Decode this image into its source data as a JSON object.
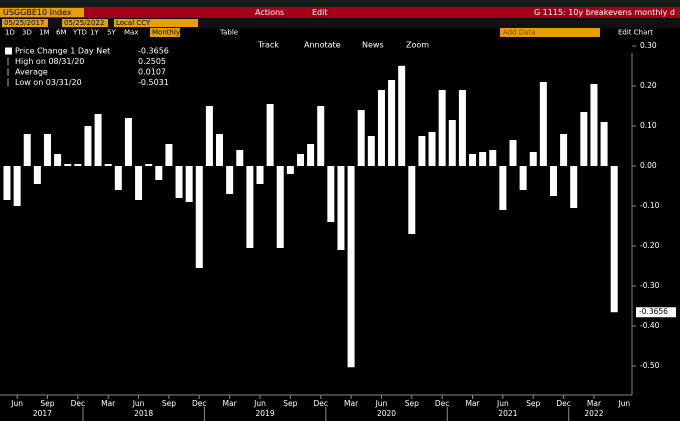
{
  "ui": {
    "security": "USGGBE10 Index",
    "actions": "Actions",
    "edit": "Edit",
    "chart_title": "G 1115: 10y breakevens monthly d",
    "start_date": "05/25/2017",
    "end_date": "05/25/2022",
    "currency": "Local CCY",
    "ranges": [
      "1D",
      "3D",
      "1M",
      "6M",
      "YTD",
      "1Y",
      "5Y",
      "Max"
    ],
    "period": "Monthly",
    "table": "Table",
    "tools": [
      "Track",
      "Annotate",
      "News",
      "Zoom"
    ],
    "add_data": "Add Data",
    "edit_chart": "Edit Chart"
  },
  "chart_data": {
    "type": "bar",
    "color": "#ffffff",
    "legend": [
      {
        "label": "Price Change 1 Day Net",
        "value": "-0.3656"
      },
      {
        "label": "High on 08/31/20",
        "value": "0.2505"
      },
      {
        "label": "Average",
        "value": "0.0107"
      },
      {
        "label": "Low on 03/31/20",
        "value": "-0.5031"
      }
    ],
    "last_price_label": "-0.3656",
    "categories": [
      null,
      "Jun",
      null,
      null,
      "Sep",
      null,
      null,
      "Dec",
      null,
      null,
      "Mar",
      null,
      null,
      "Jun",
      null,
      null,
      "Sep",
      null,
      null,
      "Dec",
      null,
      null,
      "Mar",
      null,
      null,
      "Jun",
      null,
      null,
      "Sep",
      null,
      null,
      "Dec",
      null,
      null,
      "Mar",
      null,
      null,
      "Jun",
      null,
      null,
      "Sep",
      null,
      null,
      "Dec",
      null,
      null,
      "Mar",
      null,
      null,
      "Jun",
      null,
      null,
      "Sep",
      null,
      null,
      "Dec",
      null,
      null,
      "Mar",
      null,
      null
    ],
    "axis_end_label": "Jun",
    "years": [
      "2017",
      "2018",
      "2019",
      "2020",
      "2021",
      "2022"
    ],
    "values": [
      -0.085,
      -0.1,
      0.08,
      -0.045,
      0.08,
      0.03,
      0.005,
      0.005,
      0.1,
      0.13,
      0.005,
      -0.06,
      0.12,
      -0.085,
      0.005,
      -0.035,
      0.055,
      -0.08,
      -0.09,
      -0.255,
      0.15,
      0.08,
      -0.07,
      0.04,
      -0.205,
      -0.045,
      0.155,
      -0.205,
      -0.02,
      0.03,
      0.055,
      0.15,
      -0.14,
      -0.21,
      -0.5031,
      0.14,
      0.075,
      0.19,
      0.215,
      0.2505,
      -0.17,
      0.075,
      0.085,
      0.19,
      0.115,
      0.19,
      0.03,
      0.035,
      0.04,
      -0.11,
      0.065,
      -0.06,
      0.035,
      0.21,
      -0.075,
      0.08,
      -0.105,
      0.135,
      0.205,
      0.11,
      -0.3656
    ],
    "ylim": [
      -0.5725,
      0.2825
    ],
    "yticks": [
      {
        "value": 0.3,
        "label": "0.30"
      },
      {
        "value": 0.2,
        "label": "0.20"
      },
      {
        "value": 0.1,
        "label": "0.10"
      },
      {
        "value": 0,
        "label": "0.00"
      },
      {
        "value": -0.1,
        "label": "-0.10"
      },
      {
        "value": -0.2,
        "label": "-0.20"
      },
      {
        "value": -0.3,
        "label": "-0.30"
      },
      {
        "value": -0.4,
        "label": "-0.40"
      },
      {
        "value": -0.5,
        "label": "-0.50"
      }
    ]
  }
}
